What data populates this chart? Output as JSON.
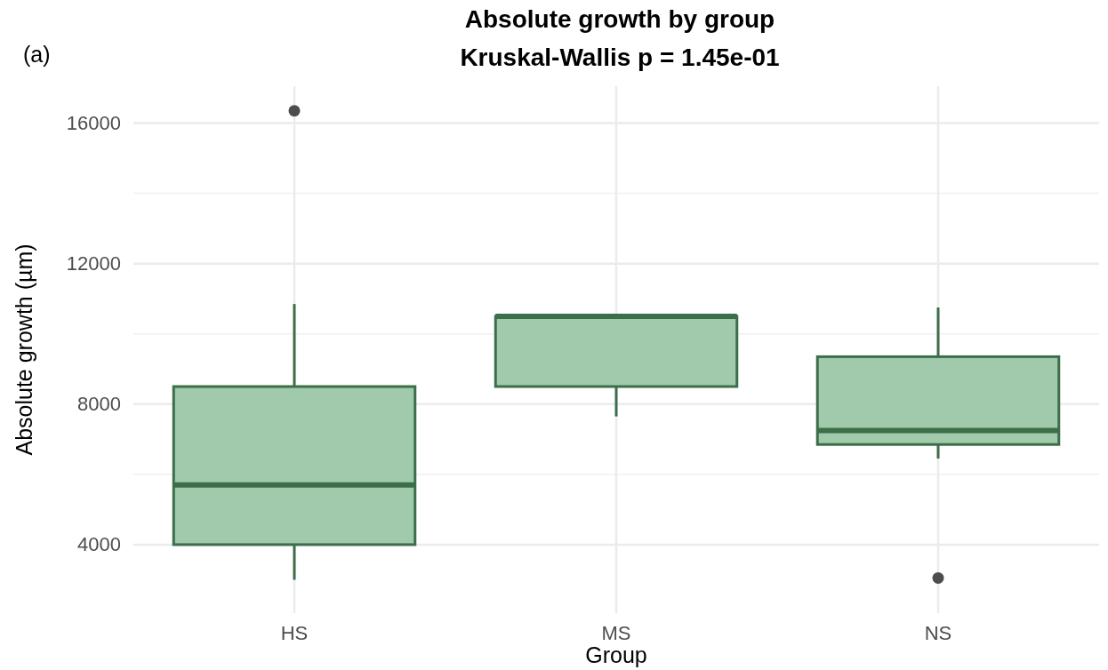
{
  "chart_data": {
    "type": "box",
    "title": "Absolute growth by group",
    "subtitle": "Kruskal-Wallis p = 1.45e-01",
    "xlabel": "Group",
    "ylabel": "Absolute growth (µm)",
    "annotations": [
      "(a)"
    ],
    "categories": [
      "HS",
      "MS",
      "NS"
    ],
    "series": [
      {
        "color": "#3d6e4a",
        "boxes": [
          {
            "low": 3000,
            "q1": 4000,
            "median": 5700,
            "q3": 8500,
            "high": 10850,
            "outliers": [
              16350
            ]
          },
          {
            "low": 7650,
            "q1": 8500,
            "median": 10500,
            "q3": 10500,
            "high": 10500
          },
          {
            "low": 6450,
            "q1": 6850,
            "median": 7250,
            "q3": 9350,
            "high": 10750,
            "outliers": [
              3050
            ]
          }
        ]
      }
    ],
    "ylim": [
      2050,
      17050
    ],
    "yticks": [
      4000,
      8000,
      12000,
      16000
    ],
    "grid": true
  }
}
